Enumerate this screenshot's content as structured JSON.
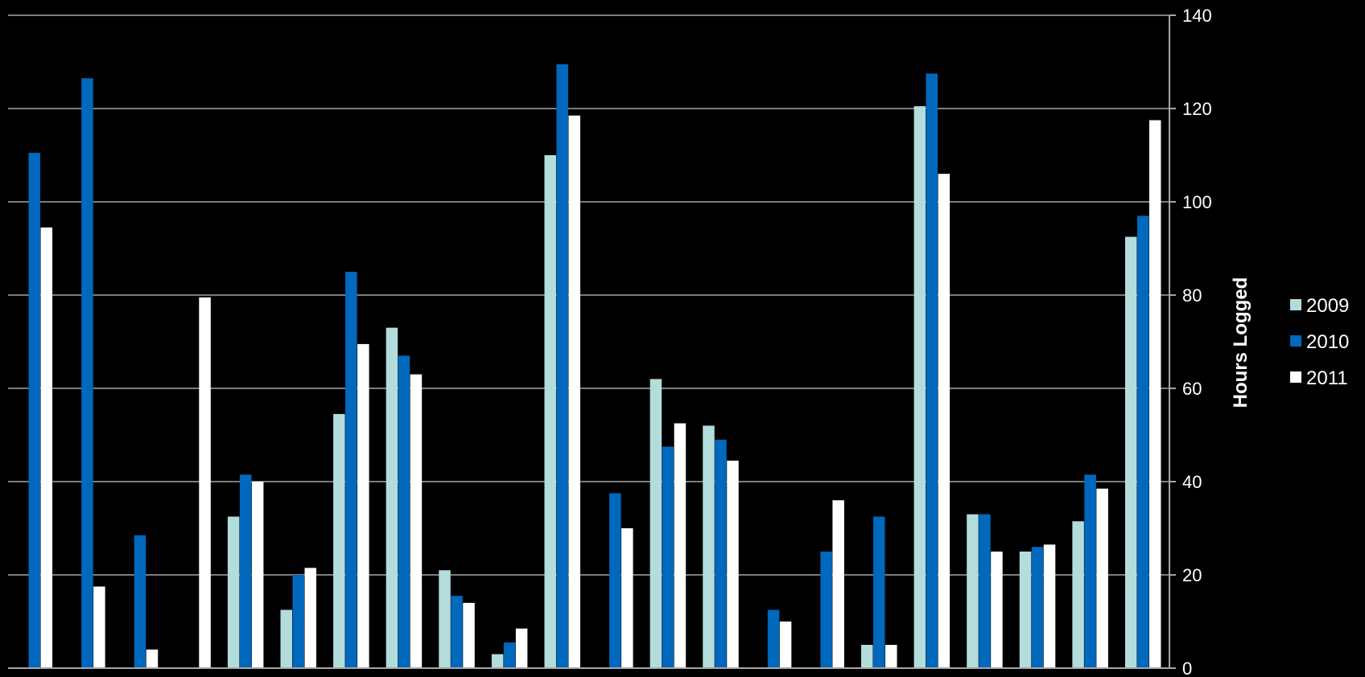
{
  "chart_data": {
    "type": "bar",
    "categories": [
      "",
      "",
      "",
      "",
      "",
      "",
      "",
      "",
      "",
      "",
      "",
      "",
      "",
      "",
      "",
      "",
      "",
      "",
      "",
      "",
      "",
      ""
    ],
    "series": [
      {
        "name": "2009",
        "color": "#b3dcdd",
        "values": [
          0,
          0,
          0,
          0,
          32.5,
          12.5,
          54.5,
          73,
          21,
          3,
          110,
          0,
          62,
          52,
          0,
          0,
          5,
          120.5,
          33,
          25,
          31.5,
          92.5
        ]
      },
      {
        "name": "2010",
        "color": "#0068bd",
        "values": [
          110.5,
          126.5,
          28.5,
          0,
          41.5,
          20,
          85,
          67,
          15.5,
          5.5,
          129.5,
          37.5,
          47.5,
          49,
          12.5,
          25,
          32.5,
          127.5,
          33,
          26,
          41.5,
          97
        ]
      },
      {
        "name": "2011",
        "color": "#ffffff",
        "values": [
          94.5,
          17.5,
          4,
          79.5,
          40,
          21.5,
          69.5,
          63,
          14,
          8.5,
          118.5,
          30,
          52.5,
          44.5,
          10,
          36,
          5,
          106,
          25,
          26.5,
          38.5,
          117.5
        ]
      }
    ],
    "title": "",
    "xlabel": "",
    "ylabel": "Hours Logged",
    "ylim": [
      0,
      140
    ],
    "yticks": [
      0,
      20,
      40,
      60,
      80,
      100,
      120,
      140
    ],
    "y_axis_side": "right",
    "grid": true,
    "legend_position": "right"
  }
}
